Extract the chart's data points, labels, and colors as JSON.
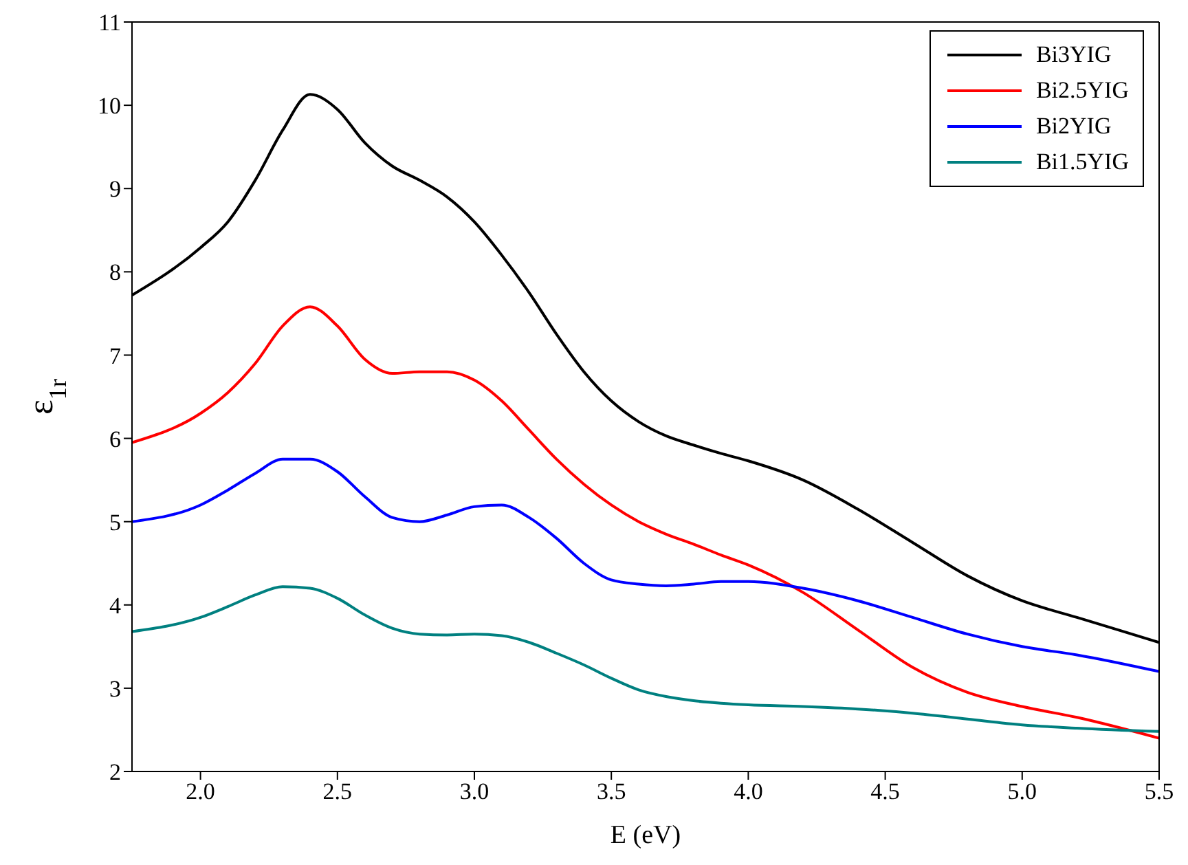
{
  "chart_data": {
    "type": "line",
    "xlabel": "E (eV)",
    "ylabel": "ε$_{1r}$",
    "xlim": [
      1.75,
      5.5
    ],
    "xticks": [
      {
        "value": 2,
        "label": "2.0"
      },
      {
        "value": 2.5,
        "label": "2.5"
      },
      {
        "value": 3,
        "label": "3.0"
      },
      {
        "value": 3.5,
        "label": "3.5"
      },
      {
        "value": 4,
        "label": "4.0"
      },
      {
        "value": 4.5,
        "label": "4.5"
      },
      {
        "value": 5,
        "label": "5.0"
      },
      {
        "value": 5.5,
        "label": "5.5"
      }
    ],
    "ylim": [
      2,
      11
    ],
    "yticks": [
      2,
      3,
      4,
      5,
      6,
      7,
      8,
      9,
      10,
      11
    ],
    "grid": false,
    "legend": "top right",
    "marker": "none",
    "line_style": "solid",
    "x": [
      1.75,
      2.0,
      2.1,
      2.2,
      2.3,
      2.4,
      2.5,
      2.6,
      2.7,
      2.8,
      2.9,
      3.0,
      3.1,
      3.2,
      3.3,
      3.4,
      3.5,
      3.6,
      3.7,
      3.8,
      3.9,
      4.0,
      4.2,
      4.4,
      4.6,
      4.8,
      5.0,
      5.2,
      5.5
    ],
    "series": [
      {
        "name": "Bi3YIG",
        "color": "#000000",
        "values": [
          7.72,
          8.29,
          8.6,
          9.1,
          9.7,
          10.13,
          9.95,
          9.55,
          9.27,
          9.1,
          8.9,
          8.6,
          8.2,
          7.75,
          7.25,
          6.8,
          6.45,
          6.2,
          6.03,
          5.92,
          5.82,
          5.73,
          5.5,
          5.15,
          4.75,
          4.35,
          4.05,
          3.85,
          3.55
        ]
      },
      {
        "name": "Bi2.5YIG",
        "color": "#ff0000",
        "values": [
          5.95,
          6.3,
          6.55,
          6.9,
          7.35,
          7.58,
          7.35,
          6.95,
          6.78,
          6.8,
          6.8,
          6.7,
          6.45,
          6.1,
          5.75,
          5.45,
          5.2,
          5.0,
          4.85,
          4.73,
          4.6,
          4.48,
          4.15,
          3.7,
          3.25,
          2.95,
          2.78,
          2.65,
          2.4
        ]
      },
      {
        "name": "Bi2YIG",
        "color": "#0000ff",
        "values": [
          5.0,
          5.2,
          5.38,
          5.58,
          5.75,
          5.75,
          5.6,
          5.3,
          5.05,
          5.0,
          5.08,
          5.18,
          5.2,
          5.05,
          4.8,
          4.5,
          4.3,
          4.25,
          4.23,
          4.25,
          4.28,
          4.28,
          4.2,
          4.05,
          3.85,
          3.65,
          3.5,
          3.4,
          3.2
        ]
      },
      {
        "name": "Bi1.5YIG",
        "color": "#008080",
        "values": [
          3.68,
          3.85,
          3.98,
          4.12,
          4.22,
          4.2,
          4.08,
          3.88,
          3.72,
          3.65,
          3.64,
          3.65,
          3.63,
          3.55,
          3.42,
          3.28,
          3.12,
          2.98,
          2.9,
          2.85,
          2.82,
          2.8,
          2.78,
          2.75,
          2.7,
          2.63,
          2.56,
          2.52,
          2.48
        ]
      }
    ]
  }
}
